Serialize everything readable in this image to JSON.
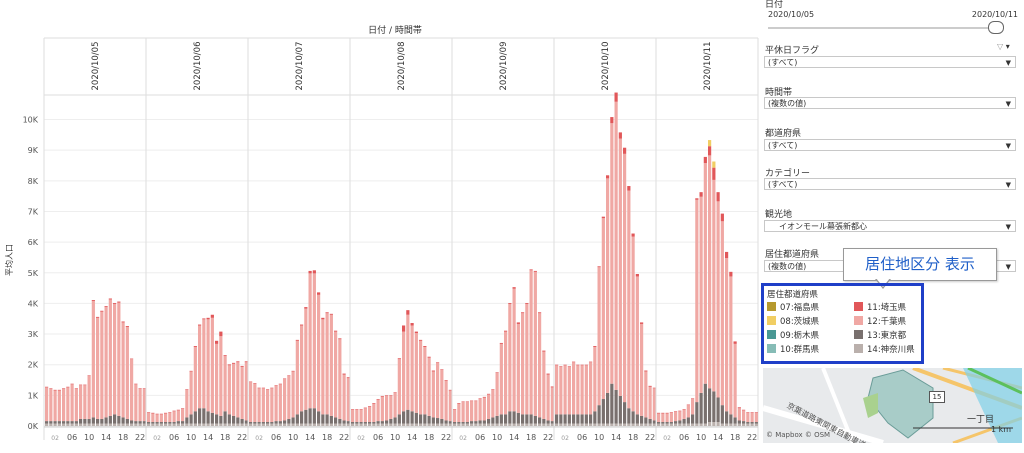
{
  "header": {
    "title": "日付 / 時間帯"
  },
  "dates": [
    "2020/10/05",
    "2020/10/06",
    "2020/10/07",
    "2020/10/08",
    "2020/10/09",
    "2020/10/10",
    "2020/10/11"
  ],
  "yaxis": {
    "label": "平均人口"
  },
  "colors": {
    "fukushima": "#b6992d",
    "ibaraki": "#f1ce63",
    "tochigi": "#499894",
    "gunma": "#86bcb6",
    "saitama": "#e15759",
    "chiba": "#f0a8a4",
    "tokyo": "#79706e",
    "kanagawa": "#bab0ac"
  },
  "chart_data": {
    "type": "bar",
    "stacked": true,
    "title": "日付 / 時間帯",
    "xlabel": "",
    "ylabel": "平均人口",
    "ylim": [
      0,
      10800
    ],
    "y_ticks": [
      "0K",
      "1K",
      "2K",
      "3K",
      "4K",
      "5K",
      "6K",
      "7K",
      "8K",
      "9K",
      "10K"
    ],
    "x_tick_labels": [
      "02",
      "06",
      "10",
      "14",
      "18",
      "22"
    ],
    "panels": [
      {
        "date": "2020/10/05",
        "chiba": [
          1100,
          1050,
          1000,
          1000,
          1050,
          1100,
          1200,
          1050,
          1100,
          1100,
          1400,
          3800,
          3300,
          3500,
          3600,
          3800,
          3600,
          3700,
          3100,
          3000,
          2000,
          1200,
          1050,
          1050
        ],
        "saitama": [
          20,
          20,
          20,
          20,
          20,
          20,
          20,
          20,
          20,
          20,
          20,
          30,
          30,
          30,
          30,
          30,
          30,
          30,
          30,
          30,
          20,
          20,
          20,
          20
        ],
        "tokyo": [
          80,
          80,
          80,
          80,
          80,
          80,
          80,
          80,
          150,
          150,
          150,
          200,
          150,
          150,
          200,
          250,
          300,
          250,
          200,
          150,
          100,
          80,
          80,
          80
        ]
      },
      {
        "date": "2020/10/06",
        "chiba": [
          300,
          280,
          250,
          250,
          280,
          300,
          350,
          350,
          400,
          900,
          1400,
          2100,
          2700,
          2900,
          3000,
          3100,
          2300,
          2600,
          1800,
          1600,
          1700,
          1800,
          1700,
          1900
        ],
        "saitama": [
          20,
          20,
          20,
          20,
          20,
          20,
          20,
          20,
          20,
          20,
          20,
          30,
          30,
          30,
          50,
          100,
          100,
          150,
          30,
          30,
          30,
          30,
          30,
          30
        ],
        "tokyo": [
          50,
          50,
          50,
          50,
          50,
          50,
          50,
          80,
          80,
          200,
          300,
          400,
          500,
          500,
          400,
          350,
          300,
          250,
          400,
          300,
          250,
          200,
          150,
          100
        ]
      },
      {
        "date": "2020/10/07",
        "chiba": [
          1300,
          1250,
          1100,
          1100,
          1050,
          1100,
          1150,
          1200,
          1350,
          1400,
          1500,
          2400,
          2800,
          3300,
          4400,
          4400,
          3800,
          3100,
          3300,
          3300,
          2800,
          2600,
          1500,
          1400
        ],
        "saitama": [
          20,
          20,
          20,
          20,
          20,
          20,
          20,
          20,
          20,
          20,
          20,
          30,
          30,
          50,
          80,
          100,
          80,
          50,
          30,
          30,
          30,
          30,
          30,
          30
        ],
        "tokyo": [
          50,
          50,
          50,
          50,
          50,
          50,
          80,
          80,
          100,
          150,
          200,
          300,
          400,
          450,
          500,
          500,
          400,
          300,
          300,
          250,
          200,
          150,
          100,
          80
        ]
      },
      {
        "date": "2020/10/08",
        "chiba": [
          400,
          400,
          400,
          450,
          500,
          600,
          700,
          800,
          800,
          750,
          800,
          1800,
          2600,
          3100,
          2800,
          2600,
          2400,
          2200,
          1900,
          1500,
          1800,
          1600,
          1300,
          1000
        ],
        "saitama": [
          20,
          20,
          20,
          20,
          20,
          20,
          20,
          20,
          20,
          20,
          20,
          30,
          200,
          150,
          80,
          50,
          30,
          30,
          30,
          30,
          20,
          20,
          20,
          20
        ],
        "tokyo": [
          50,
          50,
          50,
          50,
          50,
          50,
          80,
          80,
          100,
          150,
          200,
          300,
          400,
          450,
          400,
          350,
          300,
          300,
          250,
          200,
          180,
          150,
          100,
          80
        ]
      },
      {
        "date": "2020/10/09",
        "chiba": [
          400,
          600,
          650,
          650,
          650,
          650,
          700,
          750,
          800,
          900,
          1400,
          2300,
          2700,
          3500,
          4000,
          2900,
          3300,
          3600,
          4700,
          4700,
          3400,
          2200,
          1500,
          1100
        ],
        "saitama": [
          20,
          20,
          20,
          20,
          20,
          20,
          20,
          20,
          20,
          20,
          20,
          30,
          30,
          30,
          50,
          50,
          30,
          30,
          30,
          30,
          30,
          30,
          30,
          30
        ],
        "tokyo": [
          50,
          50,
          50,
          50,
          80,
          80,
          100,
          100,
          150,
          200,
          250,
          300,
          300,
          400,
          400,
          350,
          300,
          300,
          300,
          250,
          200,
          150,
          100,
          80
        ]
      },
      {
        "date": "2020/10/10",
        "chiba": [
          1600,
          1550,
          1600,
          1550,
          1700,
          1600,
          1600,
          1600,
          1700,
          2100,
          4500,
          5900,
          7000,
          8500,
          9400,
          8400,
          8100,
          7100,
          5700,
          4500,
          3000,
          1500,
          1050,
          1050
        ],
        "saitama": [
          20,
          20,
          20,
          20,
          20,
          20,
          20,
          20,
          20,
          30,
          30,
          50,
          100,
          200,
          300,
          200,
          200,
          150,
          100,
          80,
          50,
          30,
          30,
          20
        ],
        "tokyo": [
          300,
          300,
          300,
          300,
          300,
          300,
          300,
          300,
          300,
          400,
          600,
          800,
          1000,
          1300,
          1100,
          900,
          700,
          500,
          400,
          300,
          250,
          200,
          150,
          100
        ]
      },
      {
        "date": "2020/10/11",
        "chiba": [
          280,
          280,
          280,
          300,
          300,
          300,
          300,
          400,
          500,
          6600,
          6400,
          7200,
          7600,
          6900,
          6400,
          6000,
          5000,
          4500,
          2400,
          400,
          350,
          300,
          300,
          300
        ],
        "saitama": [
          20,
          20,
          20,
          20,
          20,
          20,
          20,
          20,
          20,
          50,
          150,
          200,
          300,
          400,
          300,
          250,
          200,
          150,
          80,
          30,
          20,
          20,
          20,
          20
        ],
        "tokyo": [
          50,
          50,
          50,
          50,
          80,
          100,
          150,
          200,
          300,
          700,
          1000,
          1300,
          1100,
          1000,
          800,
          600,
          400,
          300,
          200,
          100,
          80,
          50,
          50,
          50
        ],
        "ibaraki": [
          0,
          0,
          0,
          0,
          0,
          0,
          0,
          0,
          0,
          0,
          0,
          0,
          200,
          200,
          0,
          0,
          0,
          0,
          0,
          0,
          0,
          0,
          0,
          0
        ],
        "kanagawa": [
          0,
          0,
          0,
          0,
          0,
          0,
          0,
          0,
          0,
          0,
          0,
          0,
          50,
          50,
          50,
          0,
          0,
          0,
          0,
          0,
          0,
          0,
          0,
          0
        ]
      }
    ]
  },
  "filters": {
    "date": {
      "label": "日付",
      "start": "2020/10/05",
      "end": "2020/10/11"
    },
    "weekday_flag": {
      "label": "平休日フラグ",
      "value": "(すべて)"
    },
    "time_slot": {
      "label": "時間帯",
      "value": "(複数の値)"
    },
    "prefecture": {
      "label": "都道府県",
      "value": "(すべて)"
    },
    "category": {
      "label": "カテゴリー",
      "value": "(すべて)"
    },
    "spot": {
      "label": "観光地",
      "value": "イオンモール幕張新都心"
    },
    "residence_pref": {
      "label": "居住都道府県",
      "value": "(複数の値)"
    }
  },
  "callout": {
    "text": "居住地区分 表示"
  },
  "legend": {
    "title": "居住都道府県",
    "items": [
      {
        "label": "07:福島県",
        "color": "#b6992d"
      },
      {
        "label": "11:埼玉県",
        "color": "#e15759"
      },
      {
        "label": "08:茨城県",
        "color": "#f1ce63"
      },
      {
        "label": "12:千葉県",
        "color": "#f0a8a4"
      },
      {
        "label": "09:栃木県",
        "color": "#499894"
      },
      {
        "label": "13:東京都",
        "color": "#79706e"
      },
      {
        "label": "10:群馬県",
        "color": "#86bcb6"
      },
      {
        "label": "14:神奈川県",
        "color": "#bab0ac"
      }
    ]
  },
  "map": {
    "attribution": "© Mapbox © OSM",
    "scale": "1 km",
    "road_label": "京葉道路東関東自動車道",
    "route_number": "15",
    "place_label": "一丁目"
  }
}
